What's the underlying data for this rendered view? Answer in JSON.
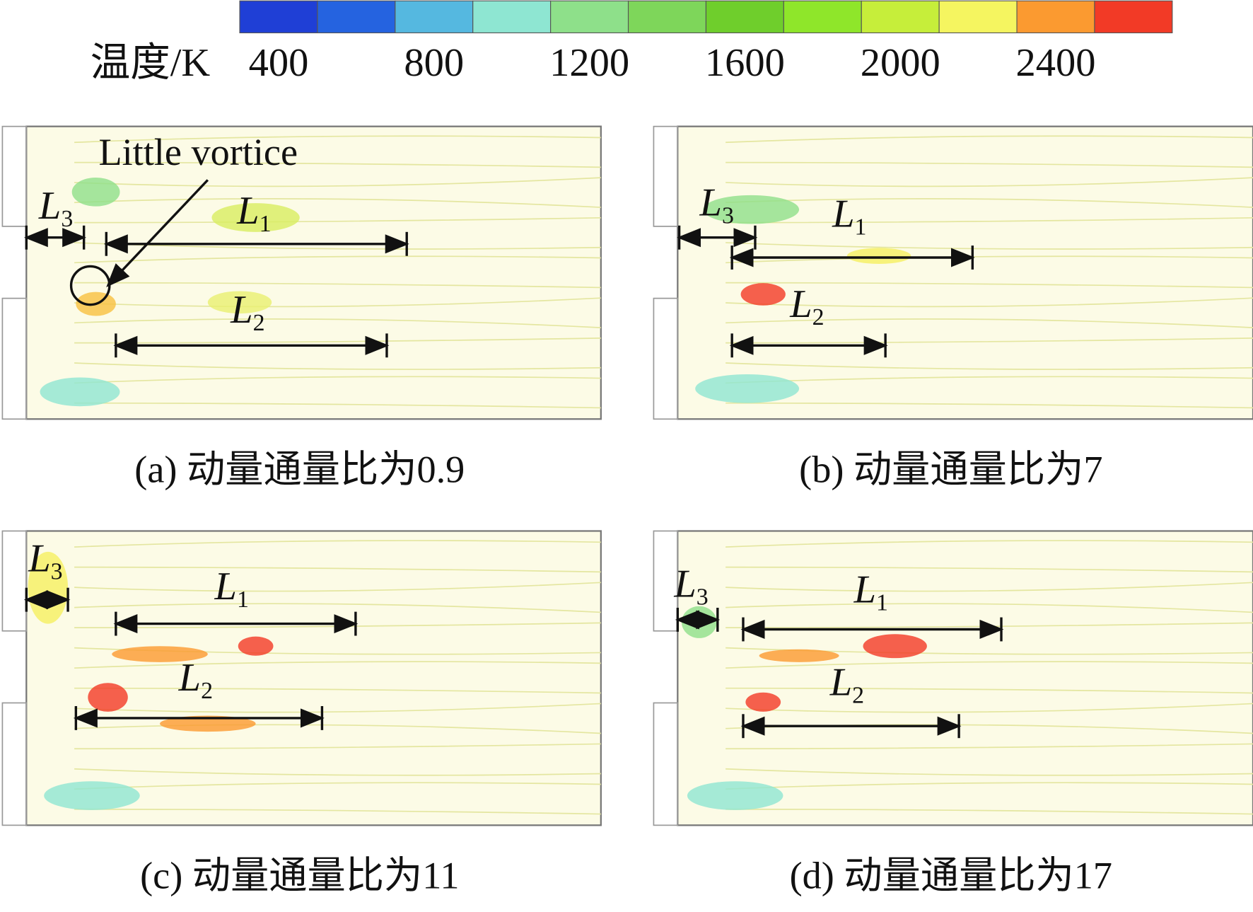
{
  "colorbar": {
    "label": "温度/K",
    "range": [
      300,
      2700
    ],
    "ticks": [
      400,
      800,
      1200,
      1600,
      2000,
      2400
    ],
    "colors": [
      "#1f3fd6",
      "#2563e0",
      "#55b8e0",
      "#8ee6d2",
      "#8ee08a",
      "#7ed65a",
      "#6fce2c",
      "#8fe62a",
      "#c6ee3a",
      "#f5f560",
      "#fb9a30",
      "#f23a26"
    ]
  },
  "panels": [
    {
      "caption": "(a) 动量通量比为0.9",
      "annotation": "Little vortice",
      "lengths": [
        {
          "symbol": "L",
          "subscript": "3"
        },
        {
          "symbol": "L",
          "subscript": "1"
        },
        {
          "symbol": "L",
          "subscript": "2"
        }
      ]
    },
    {
      "caption": "(b) 动量通量比为7",
      "lengths": [
        {
          "symbol": "L",
          "subscript": "3"
        },
        {
          "symbol": "L",
          "subscript": "1"
        },
        {
          "symbol": "L",
          "subscript": "2"
        }
      ]
    },
    {
      "caption": "(c) 动量通量比为11",
      "lengths": [
        {
          "symbol": "L",
          "subscript": "3"
        },
        {
          "symbol": "L",
          "subscript": "1"
        },
        {
          "symbol": "L",
          "subscript": "2"
        }
      ]
    },
    {
      "caption": "(d) 动量通量比为17",
      "lengths": [
        {
          "symbol": "L",
          "subscript": "3"
        },
        {
          "symbol": "L",
          "subscript": "1"
        },
        {
          "symbol": "L",
          "subscript": "2"
        }
      ]
    }
  ]
}
